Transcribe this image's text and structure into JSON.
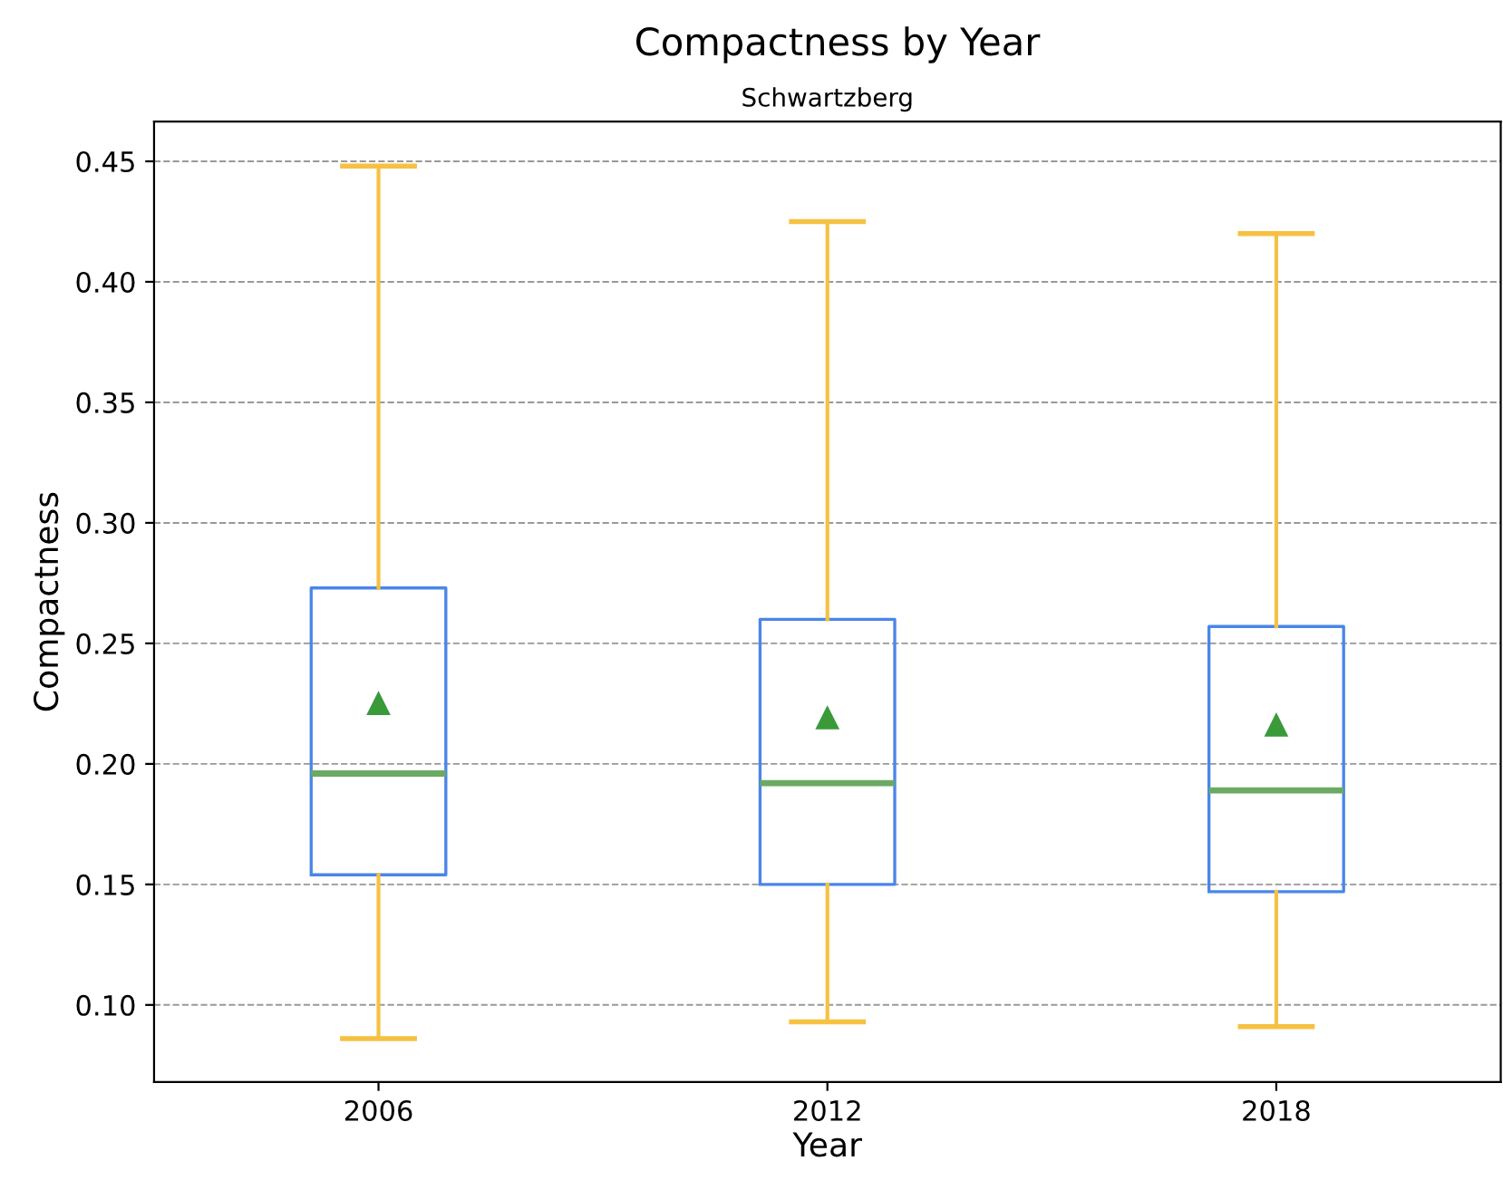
{
  "chart_data": {
    "type": "box",
    "title": "Compactness by Year",
    "subtitle": "Schwartzberg",
    "xlabel": "Year",
    "ylabel": "Compactness",
    "categories": [
      "2006",
      "2012",
      "2018"
    ],
    "boxes": [
      {
        "low": 0.086,
        "q1": 0.154,
        "median": 0.196,
        "q3": 0.273,
        "high": 0.448,
        "mean": 0.225
      },
      {
        "low": 0.093,
        "q1": 0.15,
        "median": 0.192,
        "q3": 0.26,
        "high": 0.425,
        "mean": 0.219
      },
      {
        "low": 0.091,
        "q1": 0.147,
        "median": 0.189,
        "q3": 0.257,
        "high": 0.42,
        "mean": 0.216
      }
    ],
    "color": "#4a86e8",
    "ylim": [
      0.068,
      0.4665
    ],
    "yticks": [
      {
        "value": 0.1,
        "label": "0.10"
      },
      0.15,
      {
        "value": 0.2,
        "label": "0.20"
      },
      0.25,
      {
        "value": 0.3,
        "label": "0.30"
      },
      0.35,
      {
        "value": 0.4,
        "label": "0.40"
      },
      0.45
    ],
    "grid": "y",
    "marker": "triangle"
  }
}
